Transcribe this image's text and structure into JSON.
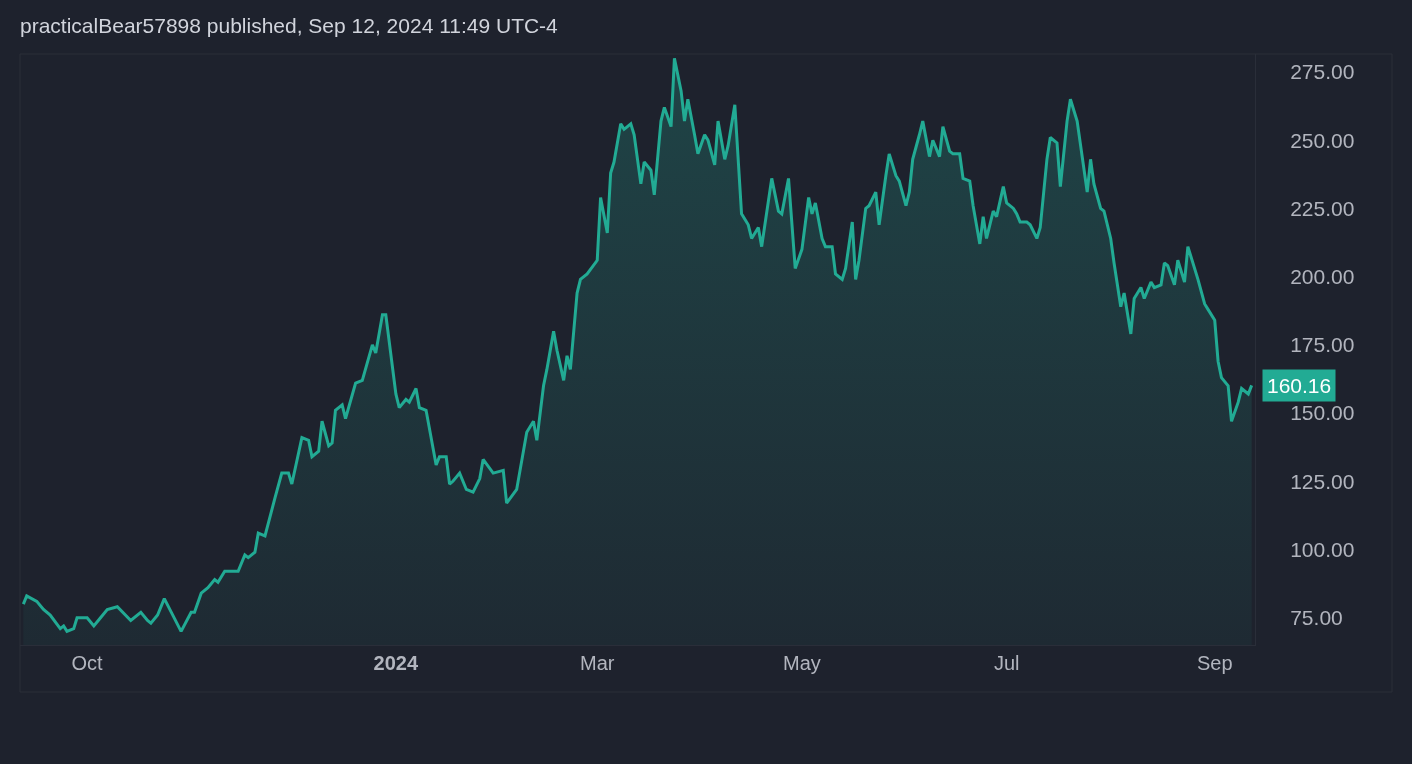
{
  "chart_data": {
    "type": "area",
    "title": "practicalBear57898 published, Sep 12, 2024 11:49 UTC-4",
    "x": [
      "2023-09-12",
      "2023-09-13",
      "2023-09-16",
      "2023-09-18",
      "2023-09-20",
      "2023-09-23",
      "2023-09-24",
      "2023-09-25",
      "2023-09-27",
      "2023-09-28",
      "2023-10-01",
      "2023-10-03",
      "2023-10-05",
      "2023-10-07",
      "2023-10-10",
      "2023-10-14",
      "2023-10-17",
      "2023-10-19",
      "2023-10-20",
      "2023-10-22",
      "2023-10-24",
      "2023-10-29",
      "2023-11-01",
      "2023-11-02",
      "2023-11-04",
      "2023-11-06",
      "2023-11-08",
      "2023-11-09",
      "2023-11-11",
      "2023-11-15",
      "2023-11-17",
      "2023-11-18",
      "2023-11-20",
      "2023-11-21",
      "2023-11-23",
      "2023-11-26",
      "2023-11-28",
      "2023-11-30",
      "2023-12-01",
      "2023-12-04",
      "2023-12-06",
      "2023-12-07",
      "2023-12-09",
      "2023-12-10",
      "2023-12-12",
      "2023-12-13",
      "2023-12-14",
      "2023-12-16",
      "2023-12-17",
      "2023-12-20",
      "2023-12-22",
      "2023-12-25",
      "2023-12-26",
      "2023-12-28",
      "2023-12-29",
      "2024-01-01",
      "2024-01-02",
      "2024-01-04",
      "2024-01-05",
      "2024-01-07",
      "2024-01-08",
      "2024-01-10",
      "2024-01-13",
      "2024-01-14",
      "2024-01-16",
      "2024-01-17",
      "2024-01-18",
      "2024-01-20",
      "2024-01-22",
      "2024-01-24",
      "2024-01-26",
      "2024-01-27",
      "2024-01-30",
      "2024-02-02",
      "2024-02-03",
      "2024-02-06",
      "2024-02-09",
      "2024-02-11",
      "2024-02-12",
      "2024-02-14",
      "2024-02-15",
      "2024-02-17",
      "2024-02-18",
      "2024-02-20",
      "2024-02-21",
      "2024-02-22",
      "2024-02-24",
      "2024-02-25",
      "2024-02-27",
      "2024-03-01",
      "2024-03-02",
      "2024-03-04",
      "2024-03-05",
      "2024-03-06",
      "2024-03-08",
      "2024-03-09",
      "2024-03-11",
      "2024-03-12",
      "2024-03-14",
      "2024-03-15",
      "2024-03-17",
      "2024-03-18",
      "2024-03-20",
      "2024-03-21",
      "2024-03-23",
      "2024-03-24",
      "2024-03-26",
      "2024-03-27",
      "2024-03-28",
      "2024-03-30",
      "2024-03-31",
      "2024-04-02",
      "2024-04-03",
      "2024-04-05",
      "2024-04-06",
      "2024-04-08",
      "2024-04-09",
      "2024-04-11",
      "2024-04-13",
      "2024-04-15",
      "2024-04-16",
      "2024-04-18",
      "2024-04-19",
      "2024-04-22",
      "2024-04-24",
      "2024-04-25",
      "2024-04-27",
      "2024-04-29",
      "2024-05-01",
      "2024-05-03",
      "2024-05-04",
      "2024-05-05",
      "2024-05-07",
      "2024-05-08",
      "2024-05-10",
      "2024-05-11",
      "2024-05-13",
      "2024-05-14",
      "2024-05-16",
      "2024-05-17",
      "2024-05-18",
      "2024-05-20",
      "2024-05-21",
      "2024-05-23",
      "2024-05-24",
      "2024-05-26",
      "2024-05-27",
      "2024-05-29",
      "2024-05-30",
      "2024-06-01",
      "2024-06-02",
      "2024-06-03",
      "2024-06-05",
      "2024-06-06",
      "2024-06-08",
      "2024-06-09",
      "2024-06-11",
      "2024-06-12",
      "2024-06-14",
      "2024-06-15",
      "2024-06-17",
      "2024-06-18",
      "2024-06-20",
      "2024-06-21",
      "2024-06-23",
      "2024-06-24",
      "2024-06-25",
      "2024-06-27",
      "2024-06-28",
      "2024-06-30",
      "2024-07-01",
      "2024-07-03",
      "2024-07-04",
      "2024-07-05",
      "2024-07-07",
      "2024-07-08",
      "2024-07-10",
      "2024-07-11",
      "2024-07-13",
      "2024-07-14",
      "2024-07-16",
      "2024-07-17",
      "2024-07-19",
      "2024-07-20",
      "2024-07-22",
      "2024-07-25",
      "2024-07-26",
      "2024-07-27",
      "2024-07-29",
      "2024-07-30",
      "2024-08-01",
      "2024-08-02",
      "2024-08-04",
      "2024-08-05",
      "2024-08-07",
      "2024-08-08",
      "2024-08-10",
      "2024-08-11",
      "2024-08-13",
      "2024-08-14",
      "2024-08-16",
      "2024-08-17",
      "2024-08-18",
      "2024-08-20",
      "2024-08-21",
      "2024-08-23",
      "2024-08-24",
      "2024-08-27",
      "2024-08-29",
      "2024-08-30",
      "2024-09-01",
      "2024-09-02",
      "2024-09-03",
      "2024-09-05",
      "2024-09-06",
      "2024-09-08",
      "2024-09-09",
      "2024-09-11",
      "2024-09-12"
    ],
    "series": [
      {
        "color": "#22ab94",
        "values": [
          80,
          83,
          81,
          78,
          76,
          71,
          72,
          70,
          71,
          75,
          75,
          72,
          75,
          78,
          79,
          74,
          77,
          74,
          73,
          76,
          82,
          70,
          77,
          77,
          84,
          86,
          89,
          88,
          92,
          92,
          98,
          97,
          99,
          106,
          105,
          119,
          128,
          128,
          124,
          141,
          140,
          134,
          136,
          147,
          138,
          139,
          151,
          153,
          148,
          161,
          162,
          175,
          172,
          186,
          186,
          157,
          152,
          155,
          154,
          159,
          152,
          151,
          131,
          134,
          134,
          124,
          125,
          128,
          122,
          121,
          126,
          133,
          128,
          129,
          117,
          122,
          143,
          147,
          140,
          160,
          166,
          180,
          173,
          162,
          171,
          166,
          194,
          199,
          201,
          206,
          229,
          216,
          238,
          242,
          256,
          254,
          256,
          252,
          234,
          242,
          239,
          230,
          257,
          262,
          255,
          280,
          268,
          257,
          265,
          252,
          245,
          252,
          250,
          241,
          257,
          243,
          248,
          263,
          223,
          219,
          214,
          218,
          211,
          236,
          224,
          223,
          236,
          203,
          210,
          229,
          223,
          227,
          214,
          211,
          211,
          201,
          199,
          203,
          220,
          199,
          206,
          225,
          226,
          231,
          219,
          237,
          245,
          237,
          235,
          226,
          231,
          243,
          252,
          257,
          244,
          250,
          244,
          255,
          246,
          245,
          245,
          236,
          235,
          226,
          212,
          222,
          214,
          224,
          222,
          233,
          227,
          225,
          223,
          220,
          220,
          219,
          214,
          218,
          243,
          251,
          249,
          233,
          257,
          265,
          257,
          231,
          243,
          234,
          225,
          224,
          214,
          205,
          189,
          194,
          179,
          192,
          196,
          192,
          198,
          196,
          197,
          205,
          204,
          197,
          206,
          198,
          211,
          199,
          190,
          188,
          184,
          169,
          163,
          160,
          147,
          154,
          159,
          157,
          160.16
        ]
      }
    ],
    "annotations": [
      {
        "text": "160.16",
        "x": "2024-09-12",
        "y": 160.16
      }
    ],
    "xlim": [
      "2023-09-11",
      "2024-09-13"
    ],
    "xticks": [
      {
        "value": "2023-10-01",
        "label": "Oct"
      },
      {
        "value": "2024-01-01",
        "label": "2024"
      },
      {
        "value": "2024-03-01",
        "label": "Mar"
      },
      {
        "value": "2024-05-01",
        "label": "May"
      },
      {
        "value": "2024-07-01",
        "label": "Jul"
      },
      {
        "value": "2024-09-01",
        "label": "Sep"
      }
    ],
    "ylim": [
      65,
      281.6
    ],
    "yticks": [
      {
        "value": 75,
        "label": "75.00"
      },
      {
        "value": 100,
        "label": "100.00"
      },
      {
        "value": 125,
        "label": "125.00"
      },
      {
        "value": 150,
        "label": "150.00"
      },
      {
        "value": 175,
        "label": "175.00"
      },
      {
        "value": 200,
        "label": "200.00"
      },
      {
        "value": 225,
        "label": "225.00"
      },
      {
        "value": 250,
        "label": "250.00"
      },
      {
        "value": 275,
        "label": "275.00"
      }
    ]
  }
}
